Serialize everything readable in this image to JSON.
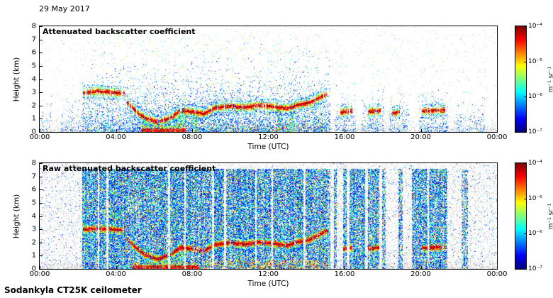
{
  "header": {
    "date": "29 May 2017"
  },
  "footer": {
    "instrument": "Sodankyla CT25K ceilometer"
  },
  "chart_data": [
    {
      "type": "heatmap",
      "title": "Attenuated backscatter coefficient",
      "xlabel": "Time (UTC)",
      "ylabel": "Height (km)",
      "x_range": [
        0,
        24
      ],
      "x_ticks": [
        "00:00",
        "04:00",
        "08:00",
        "12:00",
        "16:00",
        "20:00",
        "00:00"
      ],
      "y_range": [
        0,
        8
      ],
      "y_ticks": [
        0,
        1,
        2,
        3,
        4,
        5,
        6,
        7,
        8
      ],
      "grid": false,
      "colormap": "jet",
      "colorbar": {
        "ticks": [
          "10⁻⁴",
          "10⁻⁵",
          "10⁻⁶",
          "10⁻⁷"
        ],
        "units": "m⁻¹ sr⁻¹",
        "min": 1e-07,
        "max": 0.0001
      },
      "render": {
        "raw": false,
        "seed": 12345,
        "gray_base": 0.015,
        "gray_ground": 0.5,
        "noise_segments": [
          [
            0.05,
            0.6,
            0.25,
            2.2
          ],
          [
            1.05,
            2.2,
            0.3,
            2.0
          ],
          [
            2.2,
            4.5,
            0.85,
            5.2
          ],
          [
            4.5,
            15.25,
            1.0,
            5.0
          ],
          [
            15.5,
            16.6,
            0.5,
            2.6
          ],
          [
            16.9,
            18.1,
            0.45,
            2.4
          ],
          [
            18.35,
            19.4,
            0.4,
            2.2
          ],
          [
            19.9,
            21.45,
            0.5,
            2.4
          ],
          [
            21.8,
            23.4,
            0.3,
            2.0
          ]
        ],
        "cloud_base_segments": [
          [
            [
              2.25,
              2.95
            ],
            [
              3.0,
              3.05
            ],
            [
              3.6,
              3.0
            ],
            [
              4.45,
              2.9
            ]
          ],
          [
            [
              4.55,
              2.25
            ],
            [
              5.0,
              1.6
            ],
            [
              5.5,
              1.05
            ],
            [
              6.2,
              0.7
            ],
            [
              6.9,
              1.1
            ],
            [
              7.4,
              1.6
            ],
            [
              8.05,
              1.5
            ],
            [
              8.6,
              1.35
            ],
            [
              9.2,
              1.8
            ],
            [
              10.0,
              1.95
            ],
            [
              10.8,
              1.85
            ],
            [
              11.5,
              2.0
            ],
            [
              12.3,
              1.9
            ],
            [
              13.0,
              1.75
            ],
            [
              13.6,
              2.05
            ],
            [
              14.2,
              2.2
            ],
            [
              14.7,
              2.6
            ],
            [
              15.1,
              2.85
            ]
          ],
          [
            [
              15.8,
              1.45
            ],
            [
              16.4,
              1.6
            ]
          ],
          [
            [
              17.25,
              1.5
            ],
            [
              17.9,
              1.6
            ]
          ],
          [
            [
              18.5,
              1.4
            ],
            [
              18.9,
              1.45
            ]
          ],
          [
            [
              20.05,
              1.55
            ],
            [
              21.3,
              1.65
            ]
          ]
        ],
        "precip_intervals": [
          [
            5.35,
            7.7
          ],
          [
            7.95,
            8.3
          ],
          [
            12.45,
            12.7
          ],
          [
            13.1,
            13.35
          ]
        ],
        "ground_red_intervals": [
          [
            5.35,
            7.7
          ]
        ],
        "low_orange_intervals": [
          [
            9.0,
            14.8
          ]
        ],
        "low_orange_p": 0.12
      }
    },
    {
      "type": "heatmap",
      "title": "Raw attenuated backscatter coefficient",
      "xlabel": "Time (UTC)",
      "ylabel": "Height (km)",
      "x_range": [
        0,
        24
      ],
      "x_ticks": [
        "00:00",
        "04:00",
        "08:00",
        "12:00",
        "16:00",
        "20:00",
        "00:00"
      ],
      "y_range": [
        0,
        8
      ],
      "y_ticks": [
        0,
        1,
        2,
        3,
        4,
        5,
        6,
        7,
        8
      ],
      "grid": false,
      "colormap": "jet",
      "colorbar": {
        "ticks": [
          "10⁻⁴",
          "10⁻⁵",
          "10⁻⁶",
          "10⁻⁷"
        ],
        "units": "m⁻¹ sr⁻¹",
        "min": 1e-07,
        "max": 0.0001
      },
      "render": {
        "raw": true,
        "seed": 98765,
        "gray_base": 0.13,
        "gray_ground": 0.45,
        "active_segments": [
          [
            2.2,
            15.25,
            1.0
          ],
          [
            15.45,
            15.6,
            0.9
          ],
          [
            15.95,
            16.1,
            0.9
          ],
          [
            16.25,
            17.1,
            0.95
          ],
          [
            17.25,
            17.85,
            0.9
          ],
          [
            18.0,
            18.15,
            0.8
          ],
          [
            18.85,
            19.05,
            0.8
          ],
          [
            19.55,
            20.35,
            0.95
          ],
          [
            20.45,
            21.4,
            0.95
          ],
          [
            22.15,
            22.5,
            0.7
          ]
        ],
        "gap_hours": [
          3.08,
          3.55,
          6.78,
          7.62,
          9.1,
          9.72,
          11.35,
          12.2,
          13.9
        ],
        "cloud_base_segments": [
          [
            [
              2.25,
              2.95
            ],
            [
              3.0,
              3.05
            ],
            [
              3.6,
              3.0
            ],
            [
              4.45,
              2.9
            ]
          ],
          [
            [
              4.55,
              2.25
            ],
            [
              5.0,
              1.6
            ],
            [
              5.5,
              1.05
            ],
            [
              6.2,
              0.7
            ],
            [
              6.9,
              1.1
            ],
            [
              7.4,
              1.6
            ],
            [
              8.05,
              1.5
            ],
            [
              8.6,
              1.35
            ],
            [
              9.2,
              1.8
            ],
            [
              10.0,
              1.95
            ],
            [
              10.8,
              1.85
            ],
            [
              11.5,
              2.0
            ],
            [
              12.3,
              1.9
            ],
            [
              13.0,
              1.75
            ],
            [
              13.6,
              2.05
            ],
            [
              14.2,
              2.2
            ],
            [
              14.7,
              2.6
            ],
            [
              15.1,
              2.85
            ]
          ],
          [
            [
              15.8,
              1.45
            ],
            [
              16.4,
              1.6
            ]
          ],
          [
            [
              17.25,
              1.5
            ],
            [
              17.9,
              1.6
            ]
          ],
          [
            [
              20.05,
              1.55
            ],
            [
              21.3,
              1.65
            ]
          ]
        ],
        "precip_intervals": [
          [
            5.35,
            7.7
          ]
        ],
        "ground_red_intervals": [
          [
            4.85,
            8.35
          ]
        ],
        "low_orange_intervals": [
          [
            8.5,
            15.1
          ]
        ],
        "low_orange_p": 0.28
      }
    }
  ]
}
